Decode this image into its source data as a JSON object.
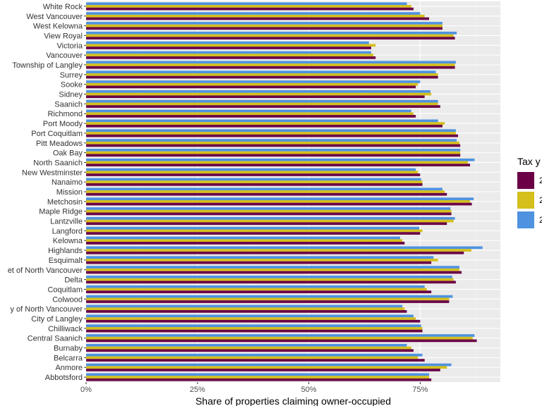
{
  "chart_data": {
    "type": "bar",
    "orientation": "horizontal",
    "xlabel": "Share of properties claiming owner-occupied",
    "ylabel": "",
    "xlim": [
      0,
      0.93
    ],
    "x_ticks": [
      0,
      0.25,
      0.5,
      0.75
    ],
    "x_tick_labels": [
      "0%",
      "25%",
      "50%",
      "75%"
    ],
    "grid": true,
    "legend": {
      "title": "Tax y",
      "position": "right"
    },
    "categories": [
      "White Rock",
      "West Vancouver",
      "West Kelowna",
      "View Royal",
      "Victoria",
      "Vancouver",
      "Township of Langley",
      "Surrey",
      "Sooke",
      "Sidney",
      "Saanich",
      "Richmond",
      "Port Moody",
      "Port Coquitlam",
      "Pitt Meadows",
      "Oak Bay",
      "North Saanich",
      "New Westminster",
      "Nanaimo",
      "Mission",
      "Metchosin",
      "Maple Ridge",
      "Lantzville",
      "Langford",
      "Kelowna",
      "Highlands",
      "Esquimalt",
      "et of North Vancouver",
      "Delta",
      "Coquitlam",
      "Colwood",
      "y of North Vancouver",
      "City of Langley",
      "Chilliwack",
      "Central Saanich",
      "Burnaby",
      "Belcarra",
      "Anmore",
      "Abbotsford"
    ],
    "series": [
      {
        "name": "2",
        "color": "#6b0046",
        "values": [
          0.735,
          0.77,
          0.8,
          0.828,
          0.64,
          0.65,
          0.828,
          0.79,
          0.74,
          0.76,
          0.795,
          0.74,
          0.8,
          0.835,
          0.84,
          0.84,
          0.862,
          0.75,
          0.755,
          0.81,
          0.866,
          0.82,
          0.81,
          0.75,
          0.715,
          0.848,
          0.775,
          0.843,
          0.83,
          0.775,
          0.815,
          0.72,
          0.75,
          0.755,
          0.877,
          0.735,
          0.76,
          0.795,
          0.775
        ]
      },
      {
        "name": "2",
        "color": "#d4bf1c",
        "values": [
          0.73,
          0.76,
          0.8,
          0.825,
          0.65,
          0.645,
          0.828,
          0.79,
          0.745,
          0.775,
          0.79,
          0.735,
          0.805,
          0.83,
          0.838,
          0.84,
          0.857,
          0.745,
          0.755,
          0.805,
          0.862,
          0.82,
          0.825,
          0.755,
          0.71,
          0.865,
          0.79,
          0.838,
          0.825,
          0.765,
          0.815,
          0.715,
          0.74,
          0.755,
          0.868,
          0.73,
          0.745,
          0.81,
          0.77
        ]
      },
      {
        "name": "2",
        "color": "#4e92e0",
        "values": [
          0.72,
          0.75,
          0.8,
          0.832,
          0.635,
          0.64,
          0.83,
          0.785,
          0.75,
          0.773,
          0.79,
          0.73,
          0.79,
          0.83,
          0.832,
          0.84,
          0.872,
          0.74,
          0.752,
          0.8,
          0.87,
          0.818,
          0.828,
          0.748,
          0.705,
          0.89,
          0.78,
          0.838,
          0.822,
          0.76,
          0.823,
          0.71,
          0.735,
          0.752,
          0.872,
          0.72,
          0.755,
          0.82,
          0.77
        ]
      }
    ]
  }
}
